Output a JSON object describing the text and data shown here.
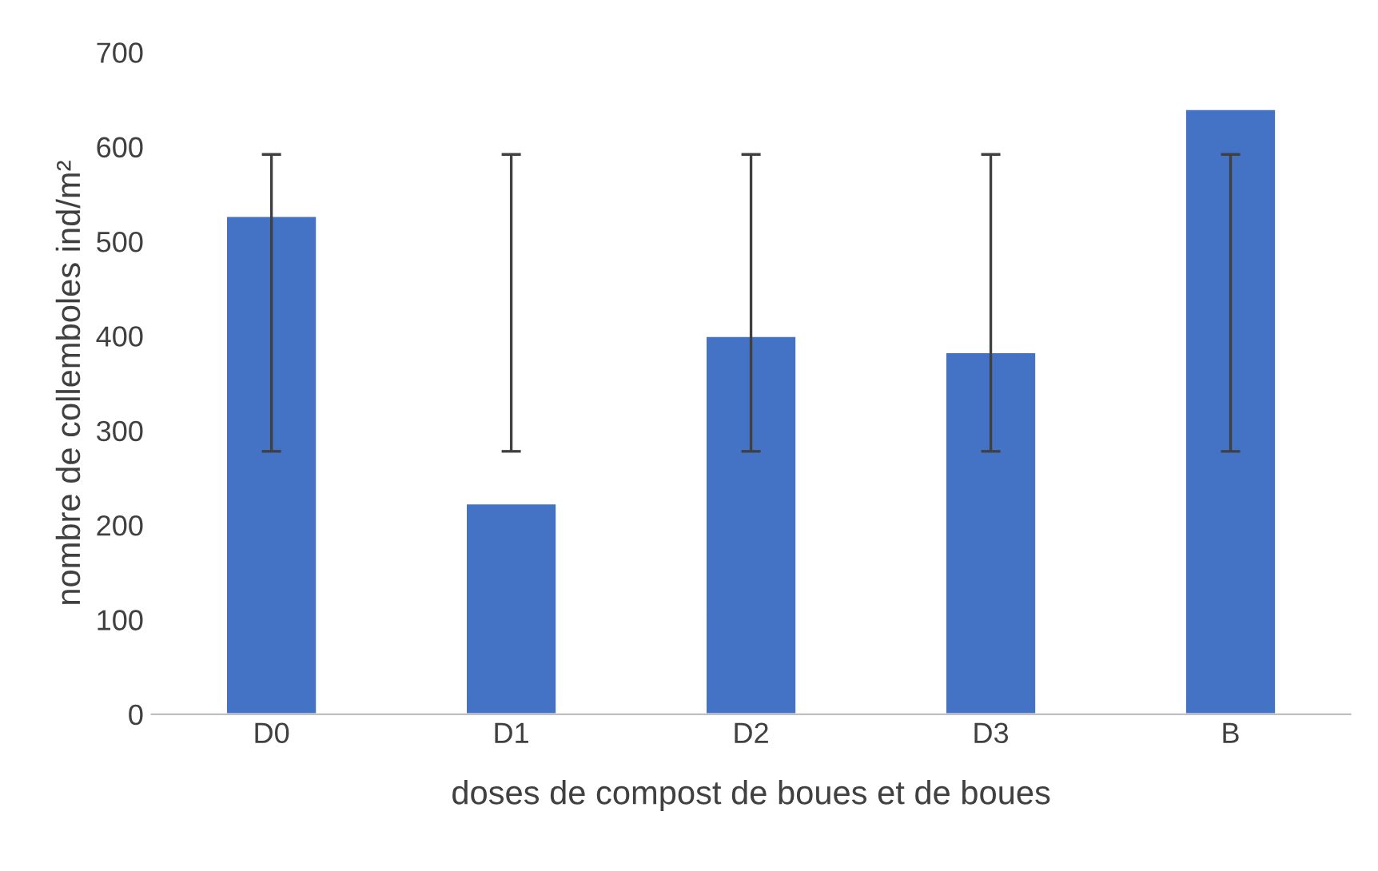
{
  "chart_data": {
    "type": "bar",
    "xlabel": "doses de compost de boues et de boues",
    "ylabel": "nombre de collemboles ind/m²",
    "categories": [
      "D0",
      "D1",
      "D2",
      "D3",
      "B"
    ],
    "values": [
      527,
      223,
      400,
      383,
      640
    ],
    "errors": [
      [
        278,
        592
      ],
      [
        278,
        592
      ],
      [
        278,
        592
      ],
      [
        278,
        592
      ],
      [
        278,
        592
      ]
    ],
    "color": "#4472c4",
    "ylim": [
      0,
      700
    ],
    "yticks": [
      0,
      100,
      200,
      300,
      400,
      500,
      600,
      700
    ],
    "grid": false
  }
}
